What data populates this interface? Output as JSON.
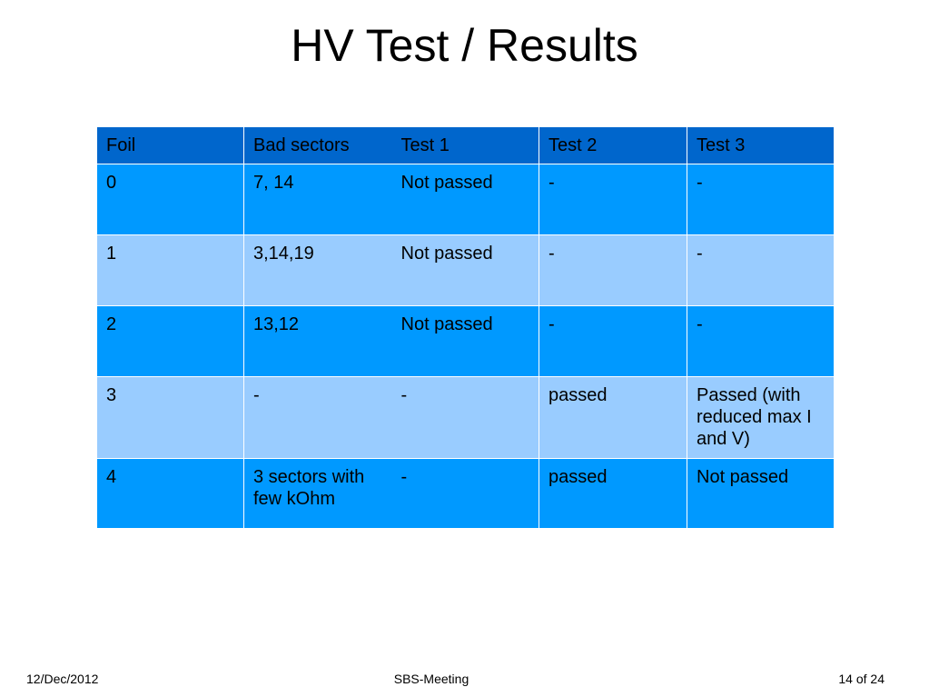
{
  "title": "HV Test / Results",
  "table": {
    "headers": [
      "Foil",
      "Bad sectors",
      "Test 1",
      "Test 2",
      "Test 3"
    ],
    "rows": [
      [
        "0",
        "7, 14",
        "Not passed",
        "-",
        "-"
      ],
      [
        "1",
        "3,14,19",
        "Not passed",
        "-",
        "-"
      ],
      [
        "2",
        "13,12",
        "Not passed",
        "-",
        "-"
      ],
      [
        "3",
        "-",
        "-",
        "passed",
        "Passed (with reduced max I and V)"
      ],
      [
        "4",
        "3 sectors with few kOhm",
        "-",
        "passed",
        "Not passed"
      ]
    ]
  },
  "footer": {
    "date": "12/Dec/2012",
    "event": "SBS-Meeting",
    "page": "14 of 24"
  },
  "colors": {
    "header_bg": "#0066cc",
    "row_dark_bg": "#0099ff",
    "row_light_bg": "#99ccff"
  }
}
